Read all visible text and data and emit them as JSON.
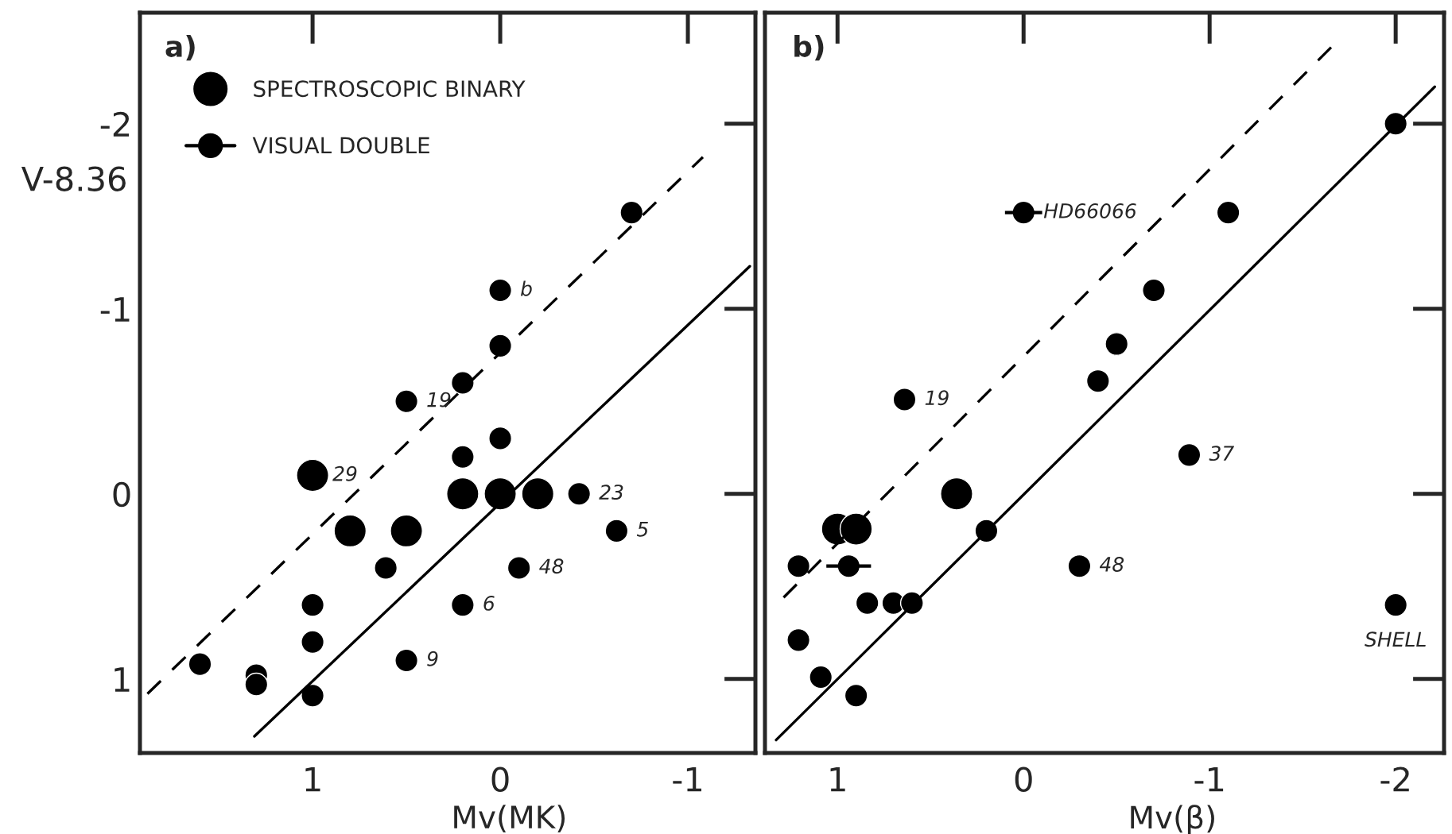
{
  "chart_data": [
    {
      "type": "scatter",
      "title": "a)",
      "xlabel": "Mv(MK)",
      "ylabel": "V-8.36",
      "xlim": [
        1.92,
        -1.36
      ],
      "ylim": [
        1.4,
        -2.6
      ],
      "xticks": [
        1,
        0,
        -1
      ],
      "yticks": [
        -2,
        -1,
        0,
        1
      ],
      "legend": "top left",
      "marker": "circle",
      "grid": false,
      "annotations": [
        {
          "text": "29",
          "x": 1.0,
          "y": -0.1
        },
        {
          "text": "b",
          "x": 0.0,
          "y": -1.1
        },
        {
          "text": "19",
          "x": 0.5,
          "y": -0.5
        },
        {
          "text": "23",
          "x": -0.42,
          "y": 0.0
        },
        {
          "text": "5",
          "x": -0.62,
          "y": 0.2
        },
        {
          "text": "48",
          "x": -0.1,
          "y": 0.4
        },
        {
          "text": "6",
          "x": 0.2,
          "y": 0.6
        },
        {
          "text": "9",
          "x": 0.5,
          "y": 0.9
        }
      ],
      "series": [
        {
          "name": "SPECTROSCOPIC BINARY",
          "color": "#000000",
          "x": [
            1.0,
            0.8,
            0.5,
            0.2,
            0.0,
            -0.2
          ],
          "values": [
            -0.1,
            0.2,
            0.2,
            0.0,
            0.0,
            0.0
          ],
          "sizes": [
            1,
            1,
            1,
            1,
            1,
            1
          ]
        },
        {
          "color": "#000000",
          "x": [
            -0.7,
            0.0,
            0.0,
            0.2,
            0.5,
            0.0,
            0.2,
            -0.42,
            -0.62,
            0.61,
            -0.1,
            1.0,
            0.2,
            1.0,
            0.5,
            1.6,
            1.3,
            1.3,
            1.0
          ],
          "values": [
            -1.52,
            -1.1,
            -0.8,
            -0.6,
            -0.5,
            -0.3,
            -0.2,
            0.0,
            0.2,
            0.4,
            0.4,
            0.6,
            0.6,
            0.8,
            0.9,
            0.92,
            0.98,
            1.03,
            1.09
          ],
          "sizes": [
            0.5,
            0.5,
            0.5,
            0.5,
            0.5,
            0.5,
            0.5,
            0.5,
            0.5,
            0.5,
            0.5,
            0.5,
            0.5,
            0.5,
            0.5,
            0.5,
            0.5,
            0.5,
            0.5
          ]
        },
        {
          "type": "line",
          "marker": "none",
          "line_style": "dashed",
          "color": "#000000",
          "x": [
            1.88,
            -1.08
          ],
          "values": [
            1.08,
            -1.82
          ]
        },
        {
          "type": "line",
          "marker": "none",
          "line_style": "solid",
          "color": "#000000",
          "x": [
            1.31,
            -1.33
          ],
          "values": [
            1.31,
            -1.23
          ]
        }
      ]
    },
    {
      "type": "scatter",
      "title": "b)",
      "xlabel": "Mv(β)",
      "xlim": [
        1.39,
        -2.26
      ],
      "ylim": [
        1.4,
        -2.6
      ],
      "xticks": [
        1,
        0,
        -1,
        -2
      ],
      "yticks": [
        -2,
        -1,
        0,
        1
      ],
      "tick_labels": "x",
      "legend": "top left",
      "marker": "circle",
      "grid": false,
      "annotations": [
        {
          "text": "HD66066",
          "x": 0.0,
          "y": -1.52
        },
        {
          "text": "19",
          "x": 0.64,
          "y": -0.51
        },
        {
          "text": "37",
          "x": -0.89,
          "y": -0.21
        },
        {
          "text": "48",
          "x": -0.3,
          "y": 0.39
        },
        {
          "text": "SHELL",
          "x": -2.0,
          "y": 0.6
        }
      ],
      "series": [
        {
          "name": "SPECTROSCOPIC BINARY",
          "color": "#000000",
          "x": [
            0.36,
            1.0,
            0.9
          ],
          "values": [
            0.0,
            0.19,
            0.19
          ],
          "sizes": [
            1,
            1,
            1
          ]
        },
        {
          "name": "VISUAL DOUBLE",
          "color": "#000000",
          "x": [
            0.0,
            0.94
          ],
          "values": [
            -1.52,
            0.39
          ],
          "xerrors": [
            0.1,
            0.12
          ],
          "sizes": [
            0.5,
            0.5
          ]
        },
        {
          "color": "#000000",
          "x": [
            -2.0,
            -1.1,
            -0.7,
            -0.5,
            -0.4,
            0.64,
            -0.89,
            0.2,
            1.21,
            -0.3,
            0.84,
            0.7,
            0.6,
            -2.0,
            1.21,
            1.09,
            0.9
          ],
          "values": [
            -2.0,
            -1.52,
            -1.1,
            -0.81,
            -0.61,
            -0.51,
            -0.21,
            0.2,
            0.39,
            0.39,
            0.59,
            0.59,
            0.59,
            0.6,
            0.79,
            0.99,
            1.09
          ],
          "sizes": [
            0.5,
            0.5,
            0.5,
            0.5,
            0.5,
            0.5,
            0.5,
            0.5,
            0.5,
            0.5,
            0.5,
            0.5,
            0.5,
            0.5,
            0.5,
            0.5,
            0.5
          ]
        },
        {
          "type": "line",
          "marker": "none",
          "line_style": "dashed",
          "color": "#000000",
          "x": [
            1.29,
            -1.66
          ],
          "values": [
            0.56,
            -2.42
          ]
        },
        {
          "type": "line",
          "marker": "none",
          "line_style": "solid",
          "color": "#000000",
          "x": [
            1.33,
            -2.21
          ],
          "values": [
            1.33,
            -2.2
          ]
        }
      ]
    }
  ]
}
